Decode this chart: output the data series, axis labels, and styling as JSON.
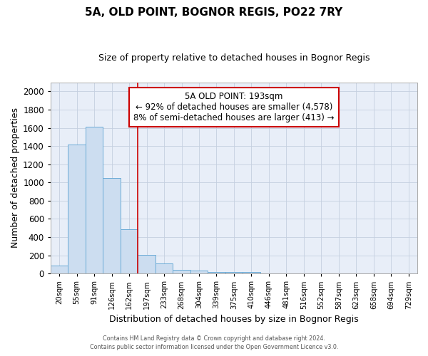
{
  "title": "5A, OLD POINT, BOGNOR REGIS, PO22 7RY",
  "subtitle": "Size of property relative to detached houses in Bognor Regis",
  "xlabel": "Distribution of detached houses by size in Bognor Regis",
  "ylabel": "Number of detached properties",
  "bins": [
    "20sqm",
    "55sqm",
    "91sqm",
    "126sqm",
    "162sqm",
    "197sqm",
    "233sqm",
    "268sqm",
    "304sqm",
    "339sqm",
    "375sqm",
    "410sqm",
    "446sqm",
    "481sqm",
    "516sqm",
    "552sqm",
    "587sqm",
    "623sqm",
    "658sqm",
    "694sqm",
    "729sqm"
  ],
  "values": [
    85,
    1420,
    1610,
    1050,
    490,
    205,
    110,
    40,
    30,
    15,
    20,
    20,
    0,
    0,
    0,
    0,
    0,
    0,
    0,
    0,
    0
  ],
  "bar_color": "#ccddf0",
  "bar_edge_color": "#6aabd6",
  "red_line_bin_index": 5,
  "annotation_line1": "5A OLD POINT: 193sqm",
  "annotation_line2": "← 92% of detached houses are smaller (4,578)",
  "annotation_line3": "8% of semi-detached houses are larger (413) →",
  "annotation_box_facecolor": "#ffffff",
  "annotation_box_edgecolor": "#cc0000",
  "red_line_color": "#cc0000",
  "footer1": "Contains HM Land Registry data © Crown copyright and database right 2024.",
  "footer2": "Contains public sector information licensed under the Open Government Licence v3.0.",
  "ylim": [
    0,
    2100
  ],
  "yticks": [
    0,
    200,
    400,
    600,
    800,
    1000,
    1200,
    1400,
    1600,
    1800,
    2000
  ],
  "bg_color": "#e8eef8",
  "grid_color": "#c5cfe0",
  "title_fontsize": 11,
  "subtitle_fontsize": 9,
  "ylabel_fontsize": 9,
  "xlabel_fontsize": 9
}
